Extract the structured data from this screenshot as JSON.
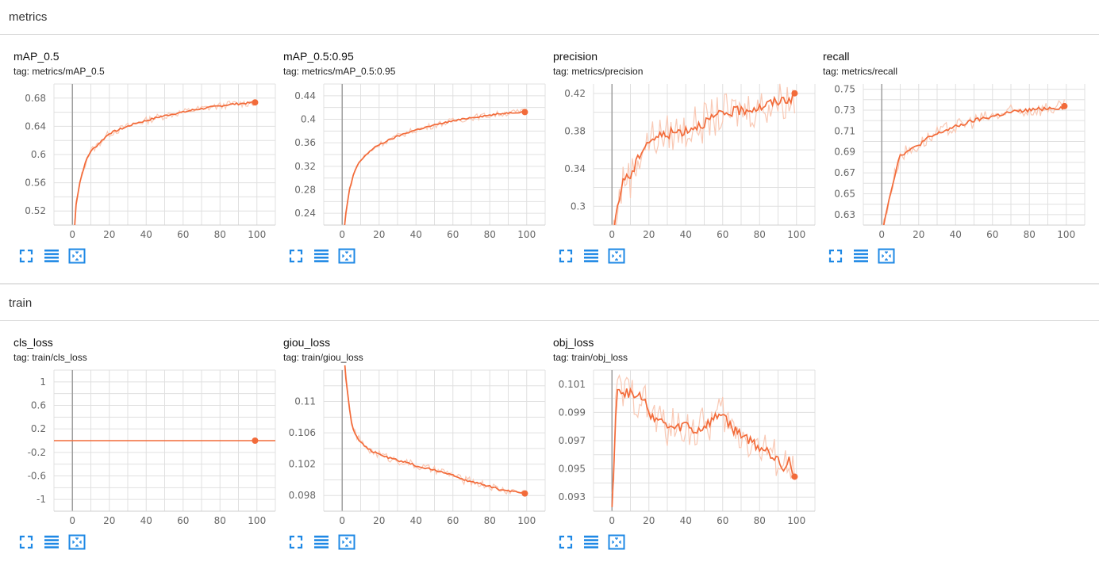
{
  "sections": [
    {
      "title": "metrics"
    },
    {
      "title": "train"
    }
  ],
  "colors": {
    "line": "#f26b3a",
    "raw": "#f9c9b5",
    "grid": "#e0e0e0",
    "axis": "#9e9e9e",
    "tool": "#1e88e5"
  },
  "toolbar_icons": [
    "fullscreen-icon",
    "data-table-icon",
    "fit-domain-icon"
  ],
  "cards": [
    {
      "title": "mAP_0.5",
      "tag": "tag: metrics/mAP_0.5",
      "chart_data": {
        "type": "line",
        "xlim": [
          -10,
          110
        ],
        "ylim": [
          0.5,
          0.7
        ],
        "xticks": [
          0,
          20,
          40,
          60,
          80,
          100
        ],
        "xtick_labels": [
          "0",
          "20",
          "40",
          "60",
          "80",
          "100"
        ],
        "yticks": [
          0.52,
          0.56,
          0.6,
          0.64,
          0.68
        ],
        "ytick_labels": [
          "0.52",
          "0.56",
          "0.6",
          "0.64",
          "0.68"
        ],
        "grid": true,
        "series": [
          {
            "x": [
              0,
              2,
              4,
              6,
              8,
              10,
              13,
              16,
              20,
              25,
              30,
              35,
              40,
              45,
              50,
              55,
              60,
              65,
              70,
              75,
              80,
              85,
              90,
              95,
              99
            ],
            "y": [
              0.45,
              0.53,
              0.56,
              0.58,
              0.595,
              0.605,
              0.612,
              0.62,
              0.63,
              0.635,
              0.64,
              0.645,
              0.648,
              0.652,
              0.655,
              0.658,
              0.66,
              0.663,
              0.665,
              0.667,
              0.669,
              0.671,
              0.672,
              0.673,
              0.674
            ]
          }
        ],
        "noise": 0.003
      }
    },
    {
      "title": "mAP_0.5:0.95",
      "tag": "tag: metrics/mAP_0.5:0.95",
      "chart_data": {
        "type": "line",
        "xlim": [
          -10,
          110
        ],
        "ylim": [
          0.22,
          0.46
        ],
        "xticks": [
          0,
          20,
          40,
          60,
          80,
          100
        ],
        "xtick_labels": [
          "0",
          "20",
          "40",
          "60",
          "80",
          "100"
        ],
        "yticks": [
          0.24,
          0.28,
          0.32,
          0.36,
          0.4,
          0.44
        ],
        "ytick_labels": [
          "0.24",
          "0.28",
          "0.32",
          "0.36",
          "0.4",
          "0.44"
        ],
        "grid": true,
        "series": [
          {
            "x": [
              0,
              2,
              4,
              6,
              8,
              10,
              13,
              16,
              20,
              25,
              30,
              35,
              40,
              45,
              50,
              55,
              60,
              65,
              70,
              75,
              80,
              85,
              90,
              95,
              99
            ],
            "y": [
              0.18,
              0.24,
              0.28,
              0.305,
              0.32,
              0.33,
              0.34,
              0.348,
              0.357,
              0.364,
              0.371,
              0.377,
              0.382,
              0.386,
              0.39,
              0.394,
              0.397,
              0.4,
              0.403,
              0.405,
              0.407,
              0.409,
              0.411,
              0.412,
              0.413
            ]
          }
        ],
        "noise": 0.003
      }
    },
    {
      "title": "precision",
      "tag": "tag: metrics/precision",
      "chart_data": {
        "type": "line",
        "xlim": [
          -10,
          110
        ],
        "ylim": [
          0.28,
          0.43
        ],
        "xticks": [
          0,
          20,
          40,
          60,
          80,
          100
        ],
        "xtick_labels": [
          "0",
          "20",
          "40",
          "60",
          "80",
          "100"
        ],
        "yticks": [
          0.3,
          0.34,
          0.38,
          0.42
        ],
        "ytick_labels": [
          "0.3",
          "0.34",
          "0.38",
          "0.42"
        ],
        "grid": true,
        "series": [
          {
            "x": [
              0,
              2,
              4,
              6,
              8,
              10,
              13,
              16,
              20,
              25,
              30,
              35,
              40,
              45,
              50,
              55,
              60,
              65,
              70,
              75,
              80,
              85,
              90,
              95,
              99
            ],
            "y": [
              0.26,
              0.29,
              0.31,
              0.325,
              0.335,
              0.33,
              0.345,
              0.36,
              0.37,
              0.374,
              0.377,
              0.379,
              0.381,
              0.385,
              0.389,
              0.394,
              0.398,
              0.4,
              0.402,
              0.404,
              0.405,
              0.409,
              0.412,
              0.414,
              0.415
            ]
          }
        ],
        "noise": 0.012
      }
    },
    {
      "title": "recall",
      "tag": "tag: metrics/recall",
      "chart_data": {
        "type": "line",
        "xlim": [
          -10,
          110
        ],
        "ylim": [
          0.62,
          0.755
        ],
        "xticks": [
          0,
          20,
          40,
          60,
          80,
          100
        ],
        "xtick_labels": [
          "0",
          "20",
          "40",
          "60",
          "80",
          "100"
        ],
        "yticks": [
          0.63,
          0.65,
          0.67,
          0.69,
          0.71,
          0.73,
          0.75
        ],
        "ytick_labels": [
          "0.63",
          "0.65",
          "0.67",
          "0.69",
          "0.71",
          "0.73",
          "0.75"
        ],
        "grid": true,
        "series": [
          {
            "x": [
              0,
              2,
              4,
              6,
              8,
              10,
              13,
              16,
              20,
              25,
              30,
              35,
              40,
              45,
              50,
              55,
              60,
              65,
              70,
              75,
              80,
              85,
              90,
              95,
              99
            ],
            "y": [
              0.61,
              0.63,
              0.645,
              0.66,
              0.675,
              0.687,
              0.69,
              0.692,
              0.697,
              0.703,
              0.707,
              0.711,
              0.714,
              0.717,
              0.72,
              0.722,
              0.724,
              0.726,
              0.728,
              0.729,
              0.73,
              0.731,
              0.732,
              0.732,
              0.733
            ]
          }
        ],
        "noise": 0.004
      }
    },
    {
      "title": "cls_loss",
      "tag": "tag: train/cls_loss",
      "chart_data": {
        "type": "line",
        "xlim": [
          -10,
          110
        ],
        "ylim": [
          -1.2,
          1.2
        ],
        "xticks": [
          0,
          20,
          40,
          60,
          80,
          100
        ],
        "xtick_labels": [
          "0",
          "20",
          "40",
          "60",
          "80",
          "100"
        ],
        "yticks": [
          -1,
          -0.6,
          -0.2,
          0.2,
          0.6,
          1
        ],
        "ytick_labels": [
          "-1",
          "-0.6",
          "-0.2",
          "0.2",
          "0.6",
          "1"
        ],
        "grid": true,
        "series": [
          {
            "x": [
              0,
              99
            ],
            "y": [
              0,
              0
            ]
          }
        ],
        "noise": 0,
        "full_width": true
      }
    },
    {
      "title": "giou_loss",
      "tag": "tag: train/giou_loss",
      "chart_data": {
        "type": "line",
        "xlim": [
          -10,
          110
        ],
        "ylim": [
          0.096,
          0.114
        ],
        "xticks": [
          0,
          20,
          40,
          60,
          80,
          100
        ],
        "xtick_labels": [
          "0",
          "20",
          "40",
          "60",
          "80",
          "100"
        ],
        "yticks": [
          0.098,
          0.102,
          0.106,
          0.11
        ],
        "ytick_labels": [
          "0.098",
          "0.102",
          "0.106",
          "0.11"
        ],
        "grid": true,
        "series": [
          {
            "x": [
              1,
              2,
              3,
              4,
              5,
              6,
              8,
              10,
              13,
              16,
              20,
              25,
              30,
              35,
              40,
              45,
              50,
              55,
              60,
              65,
              70,
              75,
              80,
              85,
              90,
              95,
              99
            ],
            "y": [
              0.116,
              0.113,
              0.111,
              0.109,
              0.1075,
              0.1065,
              0.1055,
              0.1048,
              0.1042,
              0.1036,
              0.1033,
              0.1028,
              0.1025,
              0.1022,
              0.1018,
              0.1015,
              0.1012,
              0.101,
              0.1006,
              0.1,
              0.0998,
              0.0995,
              0.0992,
              0.0988,
              0.0986,
              0.0985,
              0.0983
            ]
          }
        ],
        "noise": 0.0003
      }
    },
    {
      "title": "obj_loss",
      "tag": "tag: train/obj_loss",
      "chart_data": {
        "type": "line",
        "xlim": [
          -10,
          110
        ],
        "ylim": [
          0.092,
          0.102
        ],
        "xticks": [
          0,
          20,
          40,
          60,
          80,
          100
        ],
        "xtick_labels": [
          "0",
          "20",
          "40",
          "60",
          "80",
          "100"
        ],
        "yticks": [
          0.093,
          0.095,
          0.097,
          0.099,
          0.101
        ],
        "ytick_labels": [
          "0.093",
          "0.095",
          "0.097",
          "0.099",
          "0.101"
        ],
        "grid": true,
        "series": [
          {
            "x": [
              0,
              2,
              3,
              5,
              7,
              10,
              13,
              16,
              20,
              25,
              30,
              35,
              40,
              45,
              50,
              55,
              60,
              65,
              70,
              75,
              80,
              85,
              88,
              90,
              93,
              96,
              99
            ],
            "y": [
              0.092,
              0.099,
              0.1008,
              0.1005,
              0.1003,
              0.1004,
              0.1,
              0.1002,
              0.099,
              0.0985,
              0.098,
              0.0978,
              0.0982,
              0.0976,
              0.098,
              0.0985,
              0.099,
              0.0978,
              0.0975,
              0.097,
              0.0965,
              0.0962,
              0.0958,
              0.096,
              0.095,
              0.0957,
              0.0941
            ]
          }
        ],
        "noise": 0.0008
      }
    }
  ]
}
